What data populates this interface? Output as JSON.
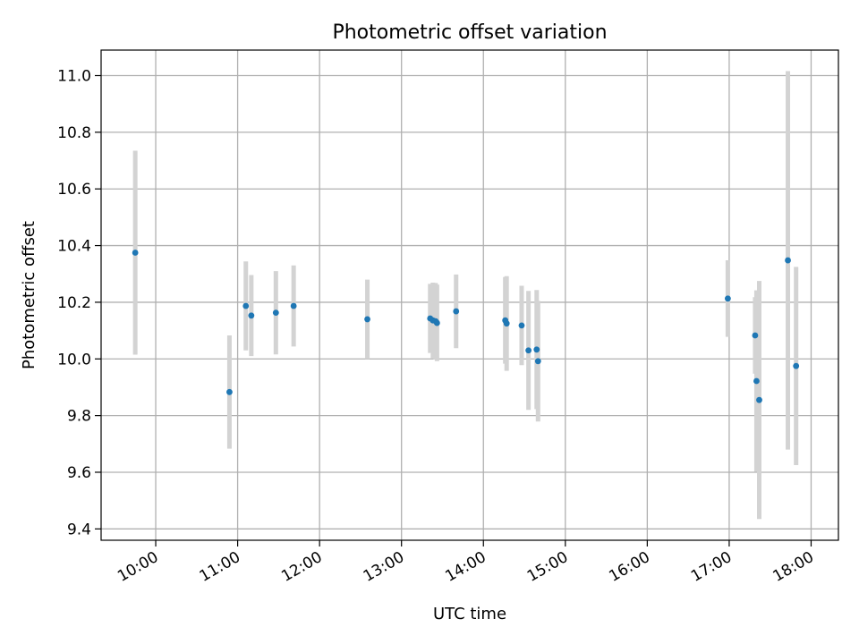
{
  "chart_data": {
    "type": "scatter",
    "title": "Photometric offset variation",
    "xlabel": "UTC time",
    "ylabel": "Photometric offset",
    "xlim": [
      "09:20",
      "18:20"
    ],
    "ylim": [
      9.36,
      11.09
    ],
    "x_ticks": [
      "10:00",
      "11:00",
      "12:00",
      "13:00",
      "14:00",
      "15:00",
      "16:00",
      "17:00",
      "18:00"
    ],
    "y_ticks": [
      "9.4",
      "9.6",
      "9.8",
      "10.0",
      "10.2",
      "10.4",
      "10.6",
      "10.8",
      "11.0"
    ],
    "grid": true,
    "colors": {
      "marker": "#1f77b4",
      "errorbar": "#d3d3d3",
      "grid": "#b0b0b0"
    },
    "points": [
      {
        "x": "09:45",
        "y": 10.375,
        "err": 0.36
      },
      {
        "x": "10:54",
        "y": 9.883,
        "err": 0.2
      },
      {
        "x": "11:06",
        "y": 10.187,
        "err": 0.157
      },
      {
        "x": "11:10",
        "y": 10.153,
        "err": 0.143
      },
      {
        "x": "11:28",
        "y": 10.163,
        "err": 0.147
      },
      {
        "x": "11:41",
        "y": 10.187,
        "err": 0.143
      },
      {
        "x": "12:35",
        "y": 10.14,
        "err": 0.14
      },
      {
        "x": "13:21",
        "y": 10.143,
        "err": 0.122
      },
      {
        "x": "13:23",
        "y": 10.136,
        "err": 0.133
      },
      {
        "x": "13:25",
        "y": 10.133,
        "err": 0.135
      },
      {
        "x": "13:26",
        "y": 10.127,
        "err": 0.135
      },
      {
        "x": "13:40",
        "y": 10.168,
        "err": 0.13
      },
      {
        "x": "14:16",
        "y": 10.136,
        "err": 0.153
      },
      {
        "x": "14:17",
        "y": 10.125,
        "err": 0.167
      },
      {
        "x": "14:28",
        "y": 10.118,
        "err": 0.14
      },
      {
        "x": "14:33",
        "y": 10.03,
        "err": 0.21
      },
      {
        "x": "14:39",
        "y": 10.033,
        "err": 0.21
      },
      {
        "x": "14:40",
        "y": 9.992,
        "err": 0.213
      },
      {
        "x": "16:59",
        "y": 10.213,
        "err": 0.135
      },
      {
        "x": "17:19",
        "y": 10.083,
        "err": 0.135
      },
      {
        "x": "17:20",
        "y": 9.922,
        "err": 0.32
      },
      {
        "x": "17:22",
        "y": 9.855,
        "err": 0.42
      },
      {
        "x": "17:43",
        "y": 10.348,
        "err": 0.668
      },
      {
        "x": "17:49",
        "y": 9.975,
        "err": 0.35
      }
    ]
  }
}
